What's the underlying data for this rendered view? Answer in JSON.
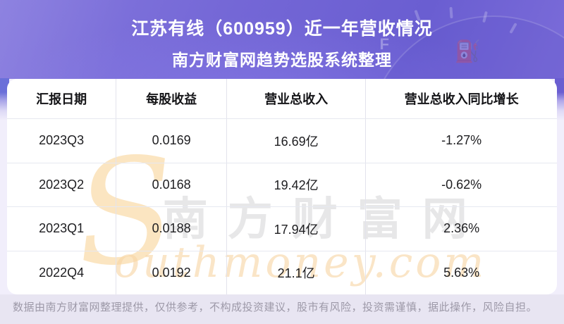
{
  "header": {
    "title": "江苏有线（600959）近一年营收情况",
    "subtitle": "南方财富网趋势选股系统整理"
  },
  "hero_background": {
    "gauge_label": "F",
    "pump_icon": "⛽"
  },
  "table": {
    "columns": [
      "汇报日期",
      "每股收益",
      "营业总收入",
      "营业总收入同比增长"
    ],
    "rows": [
      [
        "2023Q3",
        "0.0169",
        "16.69亿",
        "-1.27%"
      ],
      [
        "2023Q2",
        "0.0168",
        "19.42亿",
        "-0.62%"
      ],
      [
        "2023Q1",
        "0.0188",
        "17.94亿",
        "2.36%"
      ],
      [
        "2022Q4",
        "0.0192",
        "21.1亿",
        "5.63%"
      ]
    ]
  },
  "watermark": {
    "cn": "南方财富网",
    "en_initial": "S",
    "en_rest": "outhmoney.com"
  },
  "footer": {
    "disclaimer": "数据由南方财富网整理提供，仅供参考，不构成投资建议，股市有风险，投资需谨慎，据此操作，风险自担。"
  },
  "colors": {
    "header_purple": "#7467d6",
    "page_bg": "#f1eefb",
    "footer_bg": "#e8e5f2",
    "watermark_orange": "#f8d6a5",
    "watermark_gray": "#d4d4d6",
    "table_bg": "#ffffff",
    "divider": "#e6e8f0"
  }
}
